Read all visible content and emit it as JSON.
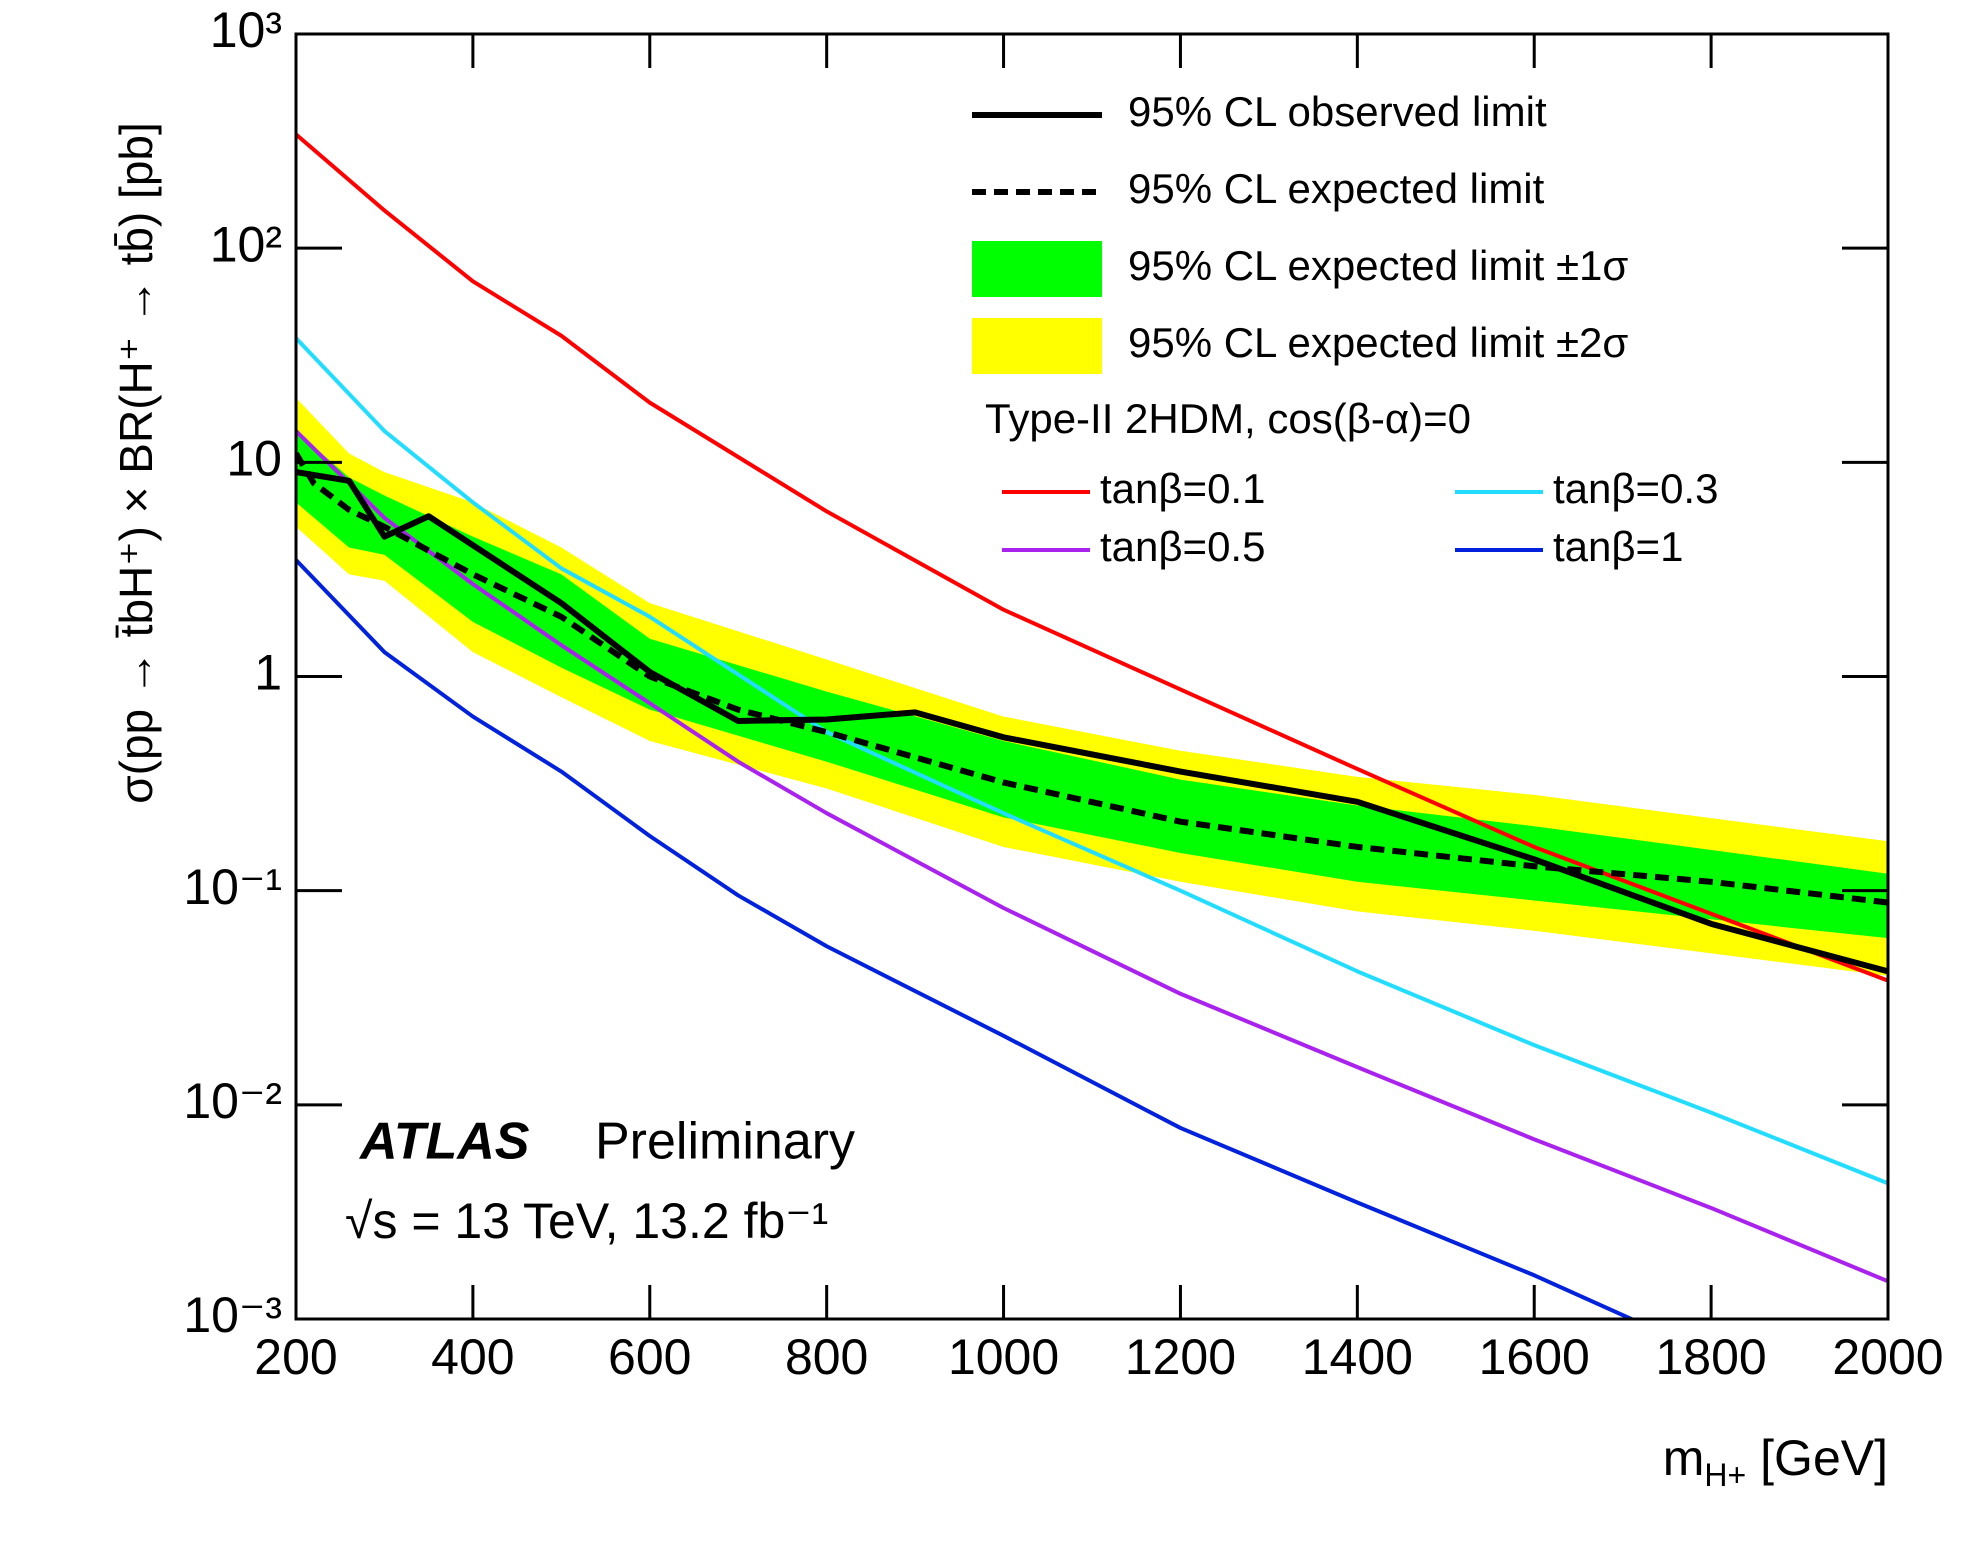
{
  "chart_data": {
    "type": "line",
    "ylabel": "σ(pp → t̄bH⁺) × BR(H⁺ → tb̄) [pb]",
    "xlabel": {
      "main": "m",
      "sub": "H+",
      "unit": "[GeV]"
    },
    "annotations": {
      "experiment": "ATLAS",
      "status": "Preliminary",
      "energy": "√s = 13 TeV, 13.2 fb⁻¹"
    },
    "legend_header": "Type-II 2HDM, cos(β-α)=0",
    "ylog": true,
    "xlim": [
      200,
      2000
    ],
    "ylim": [
      0.001,
      1000
    ],
    "xticks": [
      200,
      400,
      600,
      800,
      1000,
      1200,
      1400,
      1600,
      1800,
      2000
    ],
    "yticks": [
      {
        "value": 0.001,
        "label": "10⁻³"
      },
      {
        "value": 0.01,
        "label": "10⁻²"
      },
      {
        "value": 0.1,
        "label": "10⁻¹"
      },
      1,
      10,
      {
        "value": 100,
        "label": "10²"
      },
      {
        "value": 1000,
        "label": "10³"
      }
    ],
    "series": [
      {
        "name": "95% CL observed limit",
        "color": "#000000",
        "kind": "line",
        "dash": false,
        "width": 6,
        "x": [
          200,
          260,
          300,
          350,
          500,
          600,
          700,
          800,
          900,
          1000,
          1200,
          1400,
          1600,
          1800,
          2000
        ],
        "values": [
          9,
          8.2,
          4.5,
          5.6,
          2.2,
          1.05,
          0.62,
          0.63,
          0.68,
          0.52,
          0.36,
          0.26,
          0.14,
          0.07,
          0.042
        ]
      },
      {
        "name": "95% CL expected limit",
        "color": "#000000",
        "kind": "line",
        "dash": true,
        "width": 6,
        "x": [
          200,
          220,
          260,
          300,
          400,
          500,
          600,
          700,
          800,
          1000,
          1200,
          1400,
          1600,
          1800,
          2000
        ],
        "values": [
          11,
          8,
          6,
          5,
          3,
          1.9,
          1,
          0.7,
          0.55,
          0.32,
          0.21,
          0.16,
          0.13,
          0.11,
          0.088
        ]
      },
      {
        "name": "95% CL expected limit ±1σ",
        "color": "#00ff00",
        "kind": "band",
        "x": [
          200,
          260,
          300,
          400,
          500,
          600,
          800,
          1000,
          1200,
          1400,
          1600,
          2000
        ],
        "low": [
          6.5,
          4,
          3.7,
          1.8,
          1.1,
          0.7,
          0.4,
          0.22,
          0.15,
          0.11,
          0.09,
          0.06
        ],
        "high": [
          14,
          8.5,
          7,
          4.5,
          3,
          1.5,
          0.85,
          0.5,
          0.33,
          0.25,
          0.2,
          0.12
        ]
      },
      {
        "name": "95% CL expected limit ±2σ",
        "color": "#ffff00",
        "kind": "band",
        "x": [
          200,
          260,
          300,
          400,
          500,
          600,
          800,
          1000,
          1200,
          1400,
          1600,
          2000
        ],
        "low": [
          5,
          3,
          2.8,
          1.3,
          0.8,
          0.5,
          0.3,
          0.16,
          0.11,
          0.08,
          0.065,
          0.04
        ],
        "high": [
          20,
          11,
          9,
          6.5,
          4,
          2.2,
          1.2,
          0.65,
          0.45,
          0.34,
          0.28,
          0.17
        ]
      },
      {
        "name": "tanβ=0.1",
        "color": "#ff0000",
        "kind": "line",
        "dash": false,
        "width": 4,
        "x": [
          200,
          300,
          400,
          500,
          600,
          800,
          1000,
          1200,
          1400,
          1600,
          1800,
          2000
        ],
        "values": [
          340,
          150,
          70,
          39,
          19,
          5.9,
          2.05,
          0.87,
          0.37,
          0.16,
          0.078,
          0.038
        ]
      },
      {
        "name": "tanβ=0.3",
        "color": "#22ddff",
        "kind": "line",
        "dash": false,
        "width": 4,
        "x": [
          200,
          300,
          400,
          500,
          600,
          800,
          1000,
          1200,
          1400,
          1600,
          1800,
          2000
        ],
        "values": [
          38,
          14,
          6.5,
          3.2,
          1.9,
          0.55,
          0.23,
          0.1,
          0.042,
          0.019,
          0.0092,
          0.0043
        ]
      },
      {
        "name": "tanβ=0.5",
        "color": "#aa22ee",
        "kind": "line",
        "dash": false,
        "width": 4,
        "x": [
          200,
          300,
          400,
          500,
          600,
          700,
          800,
          1000,
          1200,
          1400,
          1600,
          1800,
          2000
        ],
        "values": [
          14,
          5.5,
          2.7,
          1.4,
          0.75,
          0.4,
          0.23,
          0.083,
          0.033,
          0.015,
          0.0069,
          0.0033,
          0.0015
        ]
      },
      {
        "name": "tanβ=1",
        "color": "#0022dd",
        "kind": "line",
        "dash": false,
        "width": 4,
        "x": [
          200,
          300,
          400,
          500,
          600,
          700,
          800,
          1000,
          1200,
          1400,
          1600,
          1800
        ],
        "values": [
          3.5,
          1.3,
          0.65,
          0.36,
          0.18,
          0.095,
          0.055,
          0.021,
          0.0078,
          0.0035,
          0.0016,
          0.00068
        ]
      }
    ]
  }
}
